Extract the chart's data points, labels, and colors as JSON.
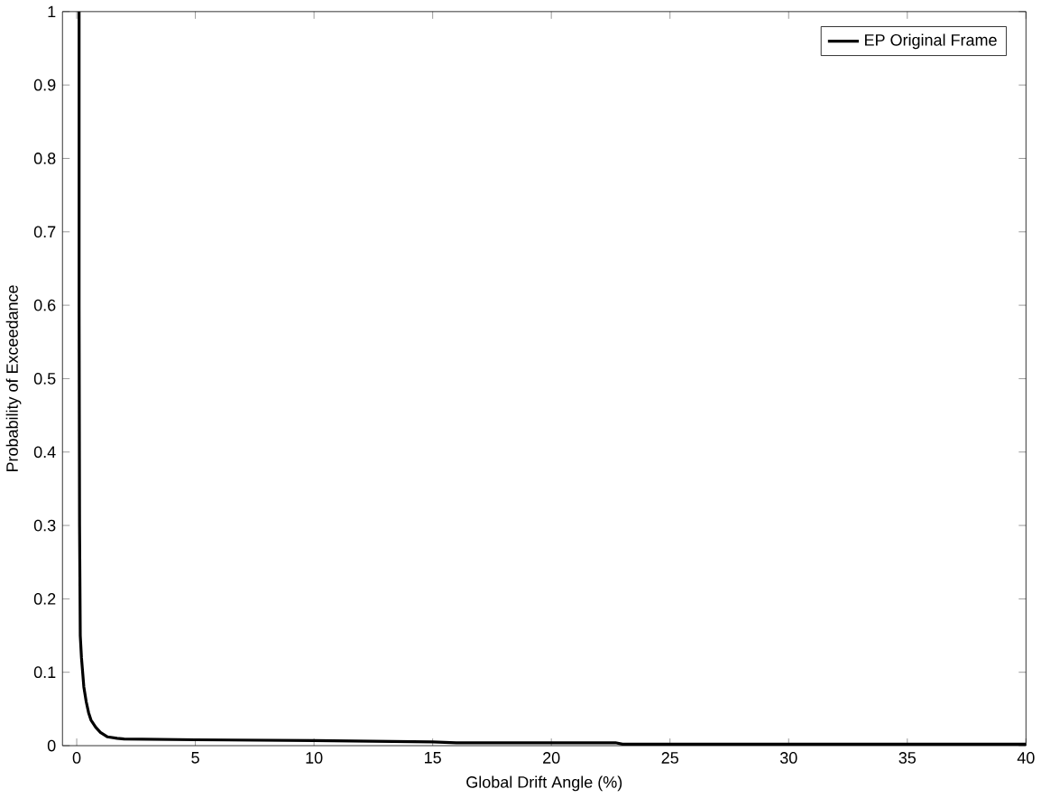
{
  "chart_data": {
    "type": "line",
    "xlabel": "Global Drift Angle (%)",
    "ylabel": "Probability of Exceedance",
    "xlim": [
      -0.6,
      40
    ],
    "ylim": [
      0,
      1
    ],
    "xticks": [
      0,
      5,
      10,
      15,
      20,
      25,
      30,
      35,
      40
    ],
    "yticks": [
      0,
      0.1,
      0.2,
      0.3,
      0.4,
      0.5,
      0.6,
      0.7,
      0.8,
      0.9,
      1
    ],
    "legend": "top right",
    "grid": false,
    "marker": "none",
    "line_style": "solid",
    "series": [
      {
        "name": "EP Original Frame",
        "color": "#000000",
        "x": [
          0.1,
          0.1,
          0.12,
          0.15,
          0.2,
          0.25,
          0.3,
          0.4,
          0.5,
          0.6,
          0.8,
          1.0,
          1.3,
          1.7,
          2.0,
          5,
          10,
          15,
          16,
          22.7,
          23,
          40
        ],
        "values": [
          1,
          0.6,
          0.3,
          0.15,
          0.12,
          0.1,
          0.08,
          0.06,
          0.045,
          0.035,
          0.025,
          0.018,
          0.012,
          0.01,
          0.009,
          0.008,
          0.007,
          0.005,
          0.004,
          0.004,
          0.002,
          0.002
        ]
      }
    ]
  }
}
